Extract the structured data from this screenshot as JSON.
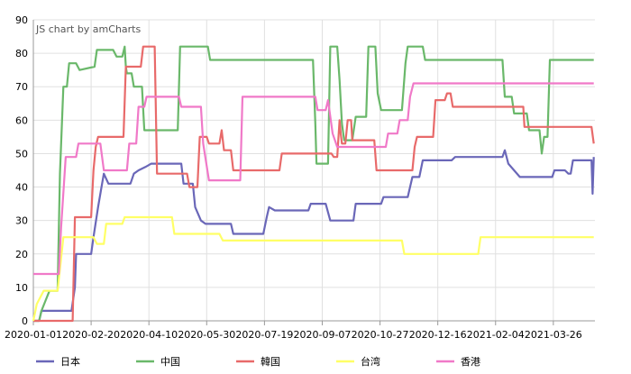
{
  "chart_data": {
    "type": "line",
    "watermark": "JS chart by amCharts",
    "title": "",
    "xlabel": "",
    "ylabel": "",
    "ylim": [
      0,
      90
    ],
    "yticks": [
      0,
      10,
      20,
      30,
      40,
      50,
      60,
      70,
      80,
      90
    ],
    "x_range": [
      "2020-01-01",
      "2021-05-01"
    ],
    "xticks": [
      "2020-01-01",
      "2020-02-20",
      "2020-04-10",
      "2020-05-30",
      "2020-07-19",
      "2020-09-07",
      "2020-10-27",
      "2020-12-16",
      "2021-02-04",
      "2021-03-26"
    ],
    "grid": true,
    "legend_position": "bottom",
    "series": [
      {
        "name": "日本",
        "color": "#6a67b8",
        "points": [
          [
            "2020-01-01",
            0
          ],
          [
            "2020-01-06",
            0
          ],
          [
            "2020-01-08",
            3
          ],
          [
            "2020-02-03",
            3
          ],
          [
            "2020-02-06",
            10
          ],
          [
            "2020-02-07",
            20
          ],
          [
            "2020-02-20",
            20
          ],
          [
            "2020-02-22",
            25
          ],
          [
            "2020-02-26",
            34
          ],
          [
            "2020-02-29",
            40
          ],
          [
            "2020-03-02",
            44
          ],
          [
            "2020-03-06",
            41
          ],
          [
            "2020-03-25",
            41
          ],
          [
            "2020-03-28",
            44
          ],
          [
            "2020-04-01",
            45
          ],
          [
            "2020-04-07",
            46
          ],
          [
            "2020-04-12",
            47
          ],
          [
            "2020-05-08",
            47
          ],
          [
            "2020-05-10",
            41
          ],
          [
            "2020-05-18",
            41
          ],
          [
            "2020-05-20",
            34
          ],
          [
            "2020-05-25",
            30
          ],
          [
            "2020-05-29",
            29
          ],
          [
            "2020-06-20",
            29
          ],
          [
            "2020-06-22",
            26
          ],
          [
            "2020-07-18",
            26
          ],
          [
            "2020-07-21",
            31
          ],
          [
            "2020-07-23",
            34
          ],
          [
            "2020-07-28",
            33
          ],
          [
            "2020-08-26",
            33
          ],
          [
            "2020-08-28",
            35
          ],
          [
            "2020-09-10",
            35
          ],
          [
            "2020-09-14",
            30
          ],
          [
            "2020-10-04",
            30
          ],
          [
            "2020-10-06",
            35
          ],
          [
            "2020-10-28",
            35
          ],
          [
            "2020-10-30",
            37
          ],
          [
            "2020-11-20",
            37
          ],
          [
            "2020-11-24",
            43
          ],
          [
            "2020-11-30",
            43
          ],
          [
            "2020-12-03",
            48
          ],
          [
            "2020-12-28",
            48
          ],
          [
            "2020-12-31",
            49
          ],
          [
            "2021-02-10",
            49
          ],
          [
            "2021-02-12",
            51
          ],
          [
            "2021-02-15",
            47
          ],
          [
            "2021-02-20",
            45
          ],
          [
            "2021-02-25",
            43
          ],
          [
            "2021-03-25",
            43
          ],
          [
            "2021-03-27",
            45
          ],
          [
            "2021-04-05",
            45
          ],
          [
            "2021-04-08",
            44
          ],
          [
            "2021-04-10",
            44
          ],
          [
            "2021-04-12",
            48
          ],
          [
            "2021-04-28",
            48
          ],
          [
            "2021-04-29",
            38
          ],
          [
            "2021-04-30",
            49
          ]
        ]
      },
      {
        "name": "中国",
        "color": "#6ab86a",
        "points": [
          [
            "2020-01-01",
            0
          ],
          [
            "2020-01-06",
            0
          ],
          [
            "2020-01-08",
            3
          ],
          [
            "2020-01-15",
            9
          ],
          [
            "2020-01-22",
            9
          ],
          [
            "2020-01-24",
            44
          ],
          [
            "2020-01-27",
            70
          ],
          [
            "2020-01-30",
            70
          ],
          [
            "2020-02-01",
            77
          ],
          [
            "2020-02-07",
            77
          ],
          [
            "2020-02-10",
            75
          ],
          [
            "2020-02-23",
            76
          ],
          [
            "2020-02-25",
            81
          ],
          [
            "2020-03-10",
            81
          ],
          [
            "2020-03-13",
            79
          ],
          [
            "2020-03-18",
            79
          ],
          [
            "2020-03-20",
            82
          ],
          [
            "2020-03-21",
            76
          ],
          [
            "2020-03-22",
            74
          ],
          [
            "2020-03-26",
            74
          ],
          [
            "2020-03-28",
            70
          ],
          [
            "2020-04-04",
            70
          ],
          [
            "2020-04-06",
            57
          ],
          [
            "2020-05-05",
            57
          ],
          [
            "2020-05-07",
            82
          ],
          [
            "2020-05-31",
            82
          ],
          [
            "2020-06-02",
            78
          ],
          [
            "2020-08-30",
            78
          ],
          [
            "2020-09-01",
            59
          ],
          [
            "2020-09-02",
            47
          ],
          [
            "2020-09-12",
            47
          ],
          [
            "2020-09-14",
            82
          ],
          [
            "2020-09-20",
            82
          ],
          [
            "2020-09-22",
            72
          ],
          [
            "2020-09-24",
            59
          ],
          [
            "2020-09-26",
            54
          ],
          [
            "2020-10-03",
            54
          ],
          [
            "2020-10-06",
            61
          ],
          [
            "2020-10-15",
            61
          ],
          [
            "2020-10-17",
            82
          ],
          [
            "2020-10-23",
            82
          ],
          [
            "2020-10-25",
            68
          ],
          [
            "2020-10-28",
            63
          ],
          [
            "2020-11-15",
            63
          ],
          [
            "2020-11-18",
            77
          ],
          [
            "2020-11-20",
            82
          ],
          [
            "2020-12-03",
            82
          ],
          [
            "2020-12-05",
            78
          ],
          [
            "2021-02-10",
            78
          ],
          [
            "2021-02-12",
            67
          ],
          [
            "2021-02-18",
            67
          ],
          [
            "2021-02-20",
            62
          ],
          [
            "2021-03-03",
            62
          ],
          [
            "2021-03-05",
            57
          ],
          [
            "2021-03-14",
            57
          ],
          [
            "2021-03-16",
            50
          ],
          [
            "2021-03-18",
            55
          ],
          [
            "2021-03-21",
            55
          ],
          [
            "2021-03-23",
            78
          ],
          [
            "2021-04-30",
            78
          ]
        ]
      },
      {
        "name": "韓国",
        "color": "#e86a6a",
        "points": [
          [
            "2020-01-01",
            0
          ],
          [
            "2020-02-04",
            0
          ],
          [
            "2020-02-06",
            31
          ],
          [
            "2020-02-20",
            31
          ],
          [
            "2020-02-22",
            45
          ],
          [
            "2020-02-24",
            52
          ],
          [
            "2020-02-26",
            55
          ],
          [
            "2020-03-19",
            55
          ],
          [
            "2020-03-21",
            76
          ],
          [
            "2020-04-03",
            76
          ],
          [
            "2020-04-05",
            82
          ],
          [
            "2020-04-15",
            82
          ],
          [
            "2020-04-17",
            44
          ],
          [
            "2020-05-13",
            44
          ],
          [
            "2020-05-15",
            40
          ],
          [
            "2020-05-22",
            40
          ],
          [
            "2020-05-24",
            55
          ],
          [
            "2020-05-30",
            55
          ],
          [
            "2020-06-01",
            53
          ],
          [
            "2020-06-10",
            53
          ],
          [
            "2020-06-12",
            57
          ],
          [
            "2020-06-14",
            51
          ],
          [
            "2020-06-20",
            51
          ],
          [
            "2020-06-22",
            45
          ],
          [
            "2020-08-01",
            45
          ],
          [
            "2020-08-03",
            50
          ],
          [
            "2020-09-15",
            50
          ],
          [
            "2020-09-17",
            49
          ],
          [
            "2020-09-20",
            49
          ],
          [
            "2020-09-22",
            60
          ],
          [
            "2020-09-23",
            56
          ],
          [
            "2020-09-24",
            53
          ],
          [
            "2020-09-27",
            53
          ],
          [
            "2020-09-29",
            60
          ],
          [
            "2020-10-02",
            60
          ],
          [
            "2020-10-03",
            54
          ],
          [
            "2020-10-22",
            54
          ],
          [
            "2020-10-24",
            45
          ],
          [
            "2020-11-24",
            45
          ],
          [
            "2020-11-26",
            52
          ],
          [
            "2020-11-28",
            55
          ],
          [
            "2020-12-12",
            55
          ],
          [
            "2020-12-14",
            66
          ],
          [
            "2020-12-22",
            66
          ],
          [
            "2020-12-24",
            68
          ],
          [
            "2020-12-27",
            68
          ],
          [
            "2020-12-29",
            64
          ],
          [
            "2021-02-28",
            64
          ],
          [
            "2021-03-01",
            58
          ],
          [
            "2021-04-28",
            58
          ],
          [
            "2021-04-30",
            53
          ]
        ]
      },
      {
        "name": "台湾",
        "color": "#ffff66",
        "points": [
          [
            "2020-01-01",
            0
          ],
          [
            "2020-01-04",
            5
          ],
          [
            "2020-01-10",
            9
          ],
          [
            "2020-01-22",
            9
          ],
          [
            "2020-01-27",
            25
          ],
          [
            "2020-02-15",
            25
          ],
          [
            "2020-02-22",
            25
          ],
          [
            "2020-02-25",
            23
          ],
          [
            "2020-03-02",
            23
          ],
          [
            "2020-03-04",
            29
          ],
          [
            "2020-03-18",
            29
          ],
          [
            "2020-03-20",
            31
          ],
          [
            "2020-04-30",
            31
          ],
          [
            "2020-05-02",
            26
          ],
          [
            "2020-06-10",
            26
          ],
          [
            "2020-06-13",
            24
          ],
          [
            "2020-11-15",
            24
          ],
          [
            "2020-11-17",
            20
          ],
          [
            "2021-01-20",
            20
          ],
          [
            "2021-01-22",
            25
          ],
          [
            "2021-04-30",
            25
          ]
        ]
      },
      {
        "name": "香港",
        "color": "#f079c8",
        "points": [
          [
            "2020-01-01",
            14
          ],
          [
            "2020-01-23",
            14
          ],
          [
            "2020-01-25",
            28
          ],
          [
            "2020-01-29",
            49
          ],
          [
            "2020-02-07",
            49
          ],
          [
            "2020-02-09",
            53
          ],
          [
            "2020-02-28",
            53
          ],
          [
            "2020-03-02",
            45
          ],
          [
            "2020-03-22",
            45
          ],
          [
            "2020-03-24",
            53
          ],
          [
            "2020-03-30",
            53
          ],
          [
            "2020-04-01",
            64
          ],
          [
            "2020-04-06",
            64
          ],
          [
            "2020-04-08",
            67
          ],
          [
            "2020-05-06",
            67
          ],
          [
            "2020-05-08",
            64
          ],
          [
            "2020-05-25",
            64
          ],
          [
            "2020-05-27",
            53
          ],
          [
            "2020-06-01",
            42
          ],
          [
            "2020-06-28",
            42
          ],
          [
            "2020-06-30",
            67
          ],
          [
            "2020-09-01",
            67
          ],
          [
            "2020-09-03",
            63
          ],
          [
            "2020-09-10",
            63
          ],
          [
            "2020-09-12",
            66
          ],
          [
            "2020-09-16",
            56
          ],
          [
            "2020-09-20",
            52
          ],
          [
            "2020-11-01",
            52
          ],
          [
            "2020-11-03",
            56
          ],
          [
            "2020-11-11",
            56
          ],
          [
            "2020-11-13",
            60
          ],
          [
            "2020-11-20",
            60
          ],
          [
            "2020-11-22",
            67
          ],
          [
            "2020-11-25",
            71
          ],
          [
            "2021-04-30",
            71
          ]
        ]
      }
    ]
  }
}
